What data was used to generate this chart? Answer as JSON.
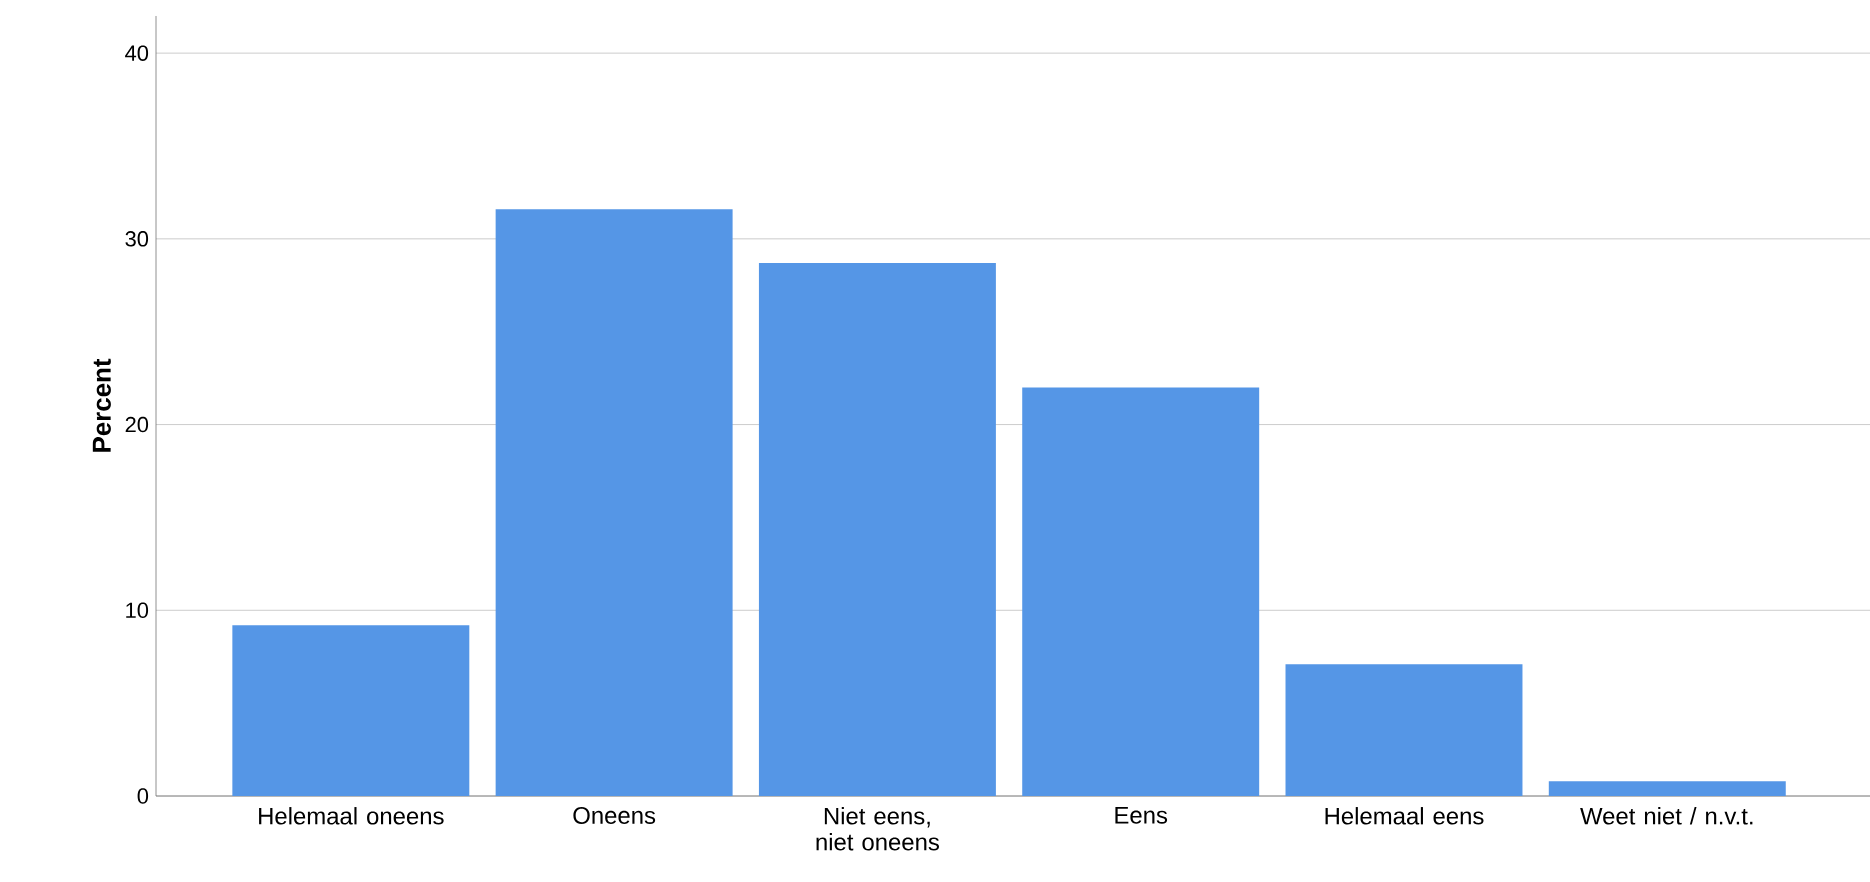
{
  "chart_data": {
    "type": "bar",
    "ylabel": "Percent",
    "categories": [
      "Helemaal oneens",
      "Oneens",
      "Niet eens, niet oneens",
      "Eens",
      "Helemaal eens",
      "Weet niet / n.v.t."
    ],
    "values": [
      9.2,
      31.6,
      28.7,
      22.0,
      7.1,
      0.8
    ],
    "color": "#5596e6",
    "ylim": [
      0,
      42
    ],
    "yticks": [
      0,
      10,
      20,
      30,
      40
    ],
    "grid": "y"
  }
}
